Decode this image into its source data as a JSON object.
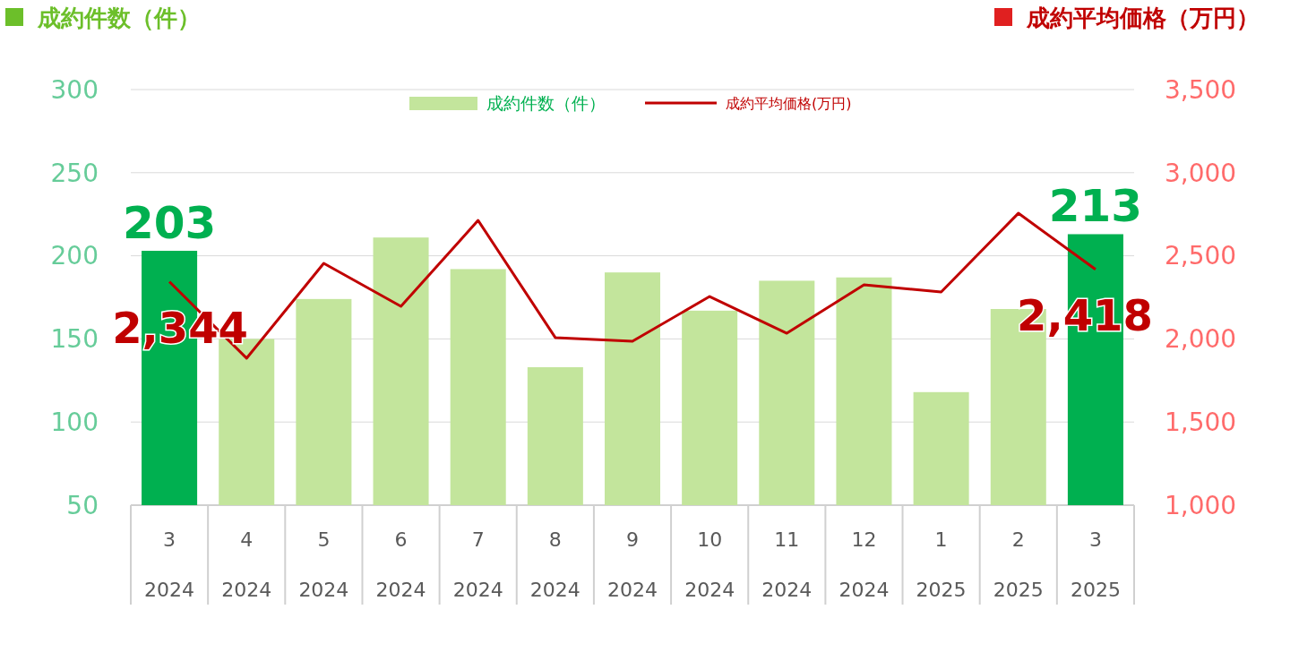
{
  "chart_data": {
    "type": "bar",
    "ylabel": "成約件数（件）",
    "y2label": "成約平均価格（万円）",
    "categories": [
      "3\n2024",
      "4\n2024",
      "5\n2024",
      "6\n2024",
      "7\n2024",
      "8\n2024",
      "9\n2024",
      "10\n2024",
      "11\n2024",
      "12\n2024",
      "1\n2025",
      "2\n2025",
      "3\n2025"
    ],
    "series": [
      {
        "name": "成約件数（件）",
        "color": "#c3e59c",
        "colors": [
          "#00b050",
          "#c3e59c",
          "#c3e59c",
          "#c3e59c",
          "#c3e59c",
          "#c3e59c",
          "#c3e59c",
          "#c3e59c",
          "#c3e59c",
          "#c3e59c",
          "#c3e59c",
          "#c3e59c",
          "#00b050"
        ],
        "values": [
          203,
          150,
          174,
          211,
          192,
          133,
          190,
          167,
          185,
          187,
          118,
          168,
          213
        ],
        "value_labels": [
          "203",
          null,
          null,
          null,
          null,
          null,
          null,
          null,
          null,
          null,
          null,
          null,
          "213"
        ]
      },
      {
        "type": "line",
        "name": "成約平均価格(万円)",
        "color": "#c00000",
        "axis": "y2",
        "values": [
          2344,
          1884,
          2455,
          2196,
          2713,
          2008,
          1986,
          2255,
          2034,
          2325,
          2282,
          2756,
          2418
        ],
        "value_labels": [
          "2,344",
          null,
          null,
          null,
          null,
          null,
          null,
          null,
          null,
          null,
          null,
          null,
          "2,418"
        ]
      }
    ],
    "ylim": [
      50,
      300
    ],
    "yticks": [
      50,
      100,
      150,
      200,
      250,
      300
    ],
    "y2lim": [
      1000,
      3500
    ],
    "y2ticks": [
      {
        "value": 1000,
        "label": "1,000"
      },
      {
        "value": 1500,
        "label": "1,500"
      },
      {
        "value": 2000,
        "label": "2,000"
      },
      {
        "value": 2500,
        "label": "2,500"
      },
      {
        "value": 3000,
        "label": "3,000"
      },
      {
        "value": 3500,
        "label": "3,500"
      }
    ],
    "grid": "y",
    "legend": "top"
  }
}
